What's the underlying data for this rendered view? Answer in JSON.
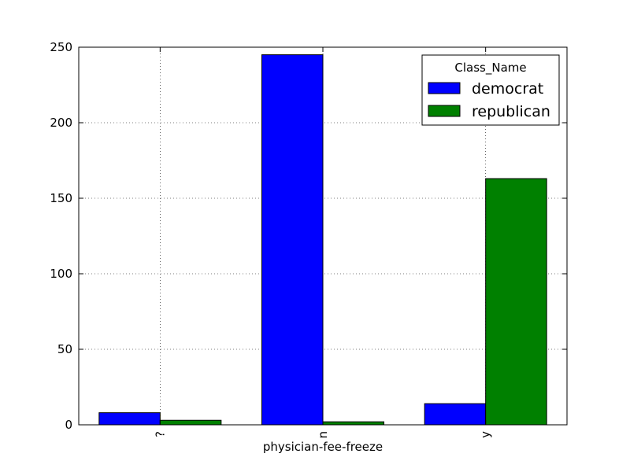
{
  "chart_data": {
    "type": "bar",
    "categories": [
      "?",
      "n",
      "y"
    ],
    "series": [
      {
        "name": "democrat",
        "values": [
          8,
          245,
          14
        ],
        "color": "#0000ff"
      },
      {
        "name": "republican",
        "values": [
          3,
          2,
          163
        ],
        "color": "#008000"
      }
    ],
    "xlabel": "physician-fee-freeze",
    "ylabel": "",
    "ylim": [
      0,
      250
    ],
    "yticks": [
      0,
      50,
      100,
      150,
      200,
      250
    ],
    "grid": true,
    "legend": {
      "title": "Class_Name",
      "placement": "top-right"
    }
  }
}
